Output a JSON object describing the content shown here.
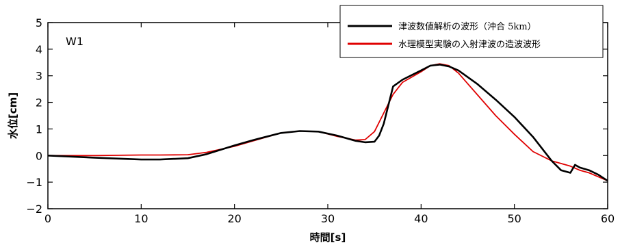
{
  "chart_data": {
    "type": "line",
    "panel_label": "W1",
    "xlabel": "時間[s]",
    "ylabel": "水位[cm]",
    "xlim": [
      0,
      60
    ],
    "ylim": [
      -2,
      5
    ],
    "x_ticks": [
      0,
      10,
      20,
      30,
      40,
      50,
      60
    ],
    "y_ticks": [
      -2,
      -1,
      0,
      1,
      2,
      3,
      4,
      5
    ],
    "grid": false,
    "legend_position": "top-right",
    "colors": {
      "series_0": "#000000",
      "series_1": "#e00000"
    },
    "series": [
      {
        "name": "津波数値解析の波形（沖合 5km）",
        "x": [
          0,
          5,
          10,
          12,
          15,
          17,
          20,
          22,
          25,
          27,
          29,
          31,
          33,
          34,
          35,
          35.5,
          36,
          37,
          38,
          40,
          41,
          42,
          43,
          44,
          46,
          48,
          50,
          52,
          54,
          55,
          56,
          56.5,
          57,
          58,
          59,
          60
        ],
        "values": [
          0,
          -0.08,
          -0.15,
          -0.15,
          -0.1,
          0.05,
          0.38,
          0.58,
          0.85,
          0.92,
          0.9,
          0.75,
          0.55,
          0.5,
          0.52,
          0.75,
          1.2,
          2.6,
          2.85,
          3.2,
          3.38,
          3.42,
          3.35,
          3.2,
          2.7,
          2.1,
          1.45,
          0.7,
          -0.2,
          -0.55,
          -0.65,
          -0.35,
          -0.45,
          -0.55,
          -0.72,
          -0.95
        ]
      },
      {
        "name": "水理模型実験の入射津波の造波波形",
        "x": [
          0,
          5,
          10,
          12,
          15,
          17,
          20,
          22,
          25,
          27,
          29,
          31,
          33,
          34,
          35,
          36,
          37,
          38,
          40,
          41,
          42,
          43,
          44,
          46,
          48,
          50,
          52,
          54,
          55,
          56,
          57,
          58,
          60
        ],
        "values": [
          0,
          0,
          0.02,
          0.02,
          0.03,
          0.12,
          0.35,
          0.55,
          0.85,
          0.92,
          0.9,
          0.72,
          0.58,
          0.6,
          0.9,
          1.6,
          2.3,
          2.75,
          3.15,
          3.38,
          3.45,
          3.38,
          3.1,
          2.3,
          1.5,
          0.8,
          0.15,
          -0.2,
          -0.3,
          -0.4,
          -0.55,
          -0.65,
          -0.95
        ]
      }
    ]
  }
}
